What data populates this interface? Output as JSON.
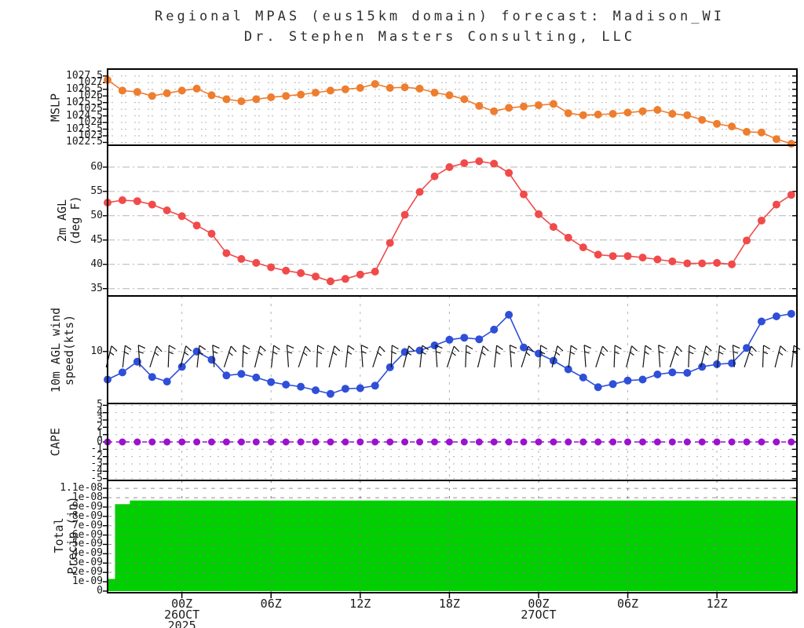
{
  "title": {
    "line1": "Regional MPAS (eus15km domain) forecast: Madison_WI",
    "line2": "Dr. Stephen Masters Consulting, LLC"
  },
  "colors": {
    "mslp": "#ee7d2e",
    "temperature": "#f14a4a",
    "wind": "#2f4fd8",
    "cape": "#9b12cc",
    "precip": "#00d000",
    "grid": "#b4b4b4",
    "frame": "#000000",
    "text": "#1a1a1a",
    "title_text": "#2e2e2e"
  },
  "chart_data": {
    "type": "line",
    "subtype": "meteogram-stacked-panels",
    "x": {
      "n_points": 47,
      "hours_between_points": 1,
      "major_tick_indices": [
        5,
        11,
        17,
        23,
        29,
        35,
        41
      ],
      "major_tick_labels": [
        "00Z",
        "06Z",
        "12Z",
        "18Z",
        "00Z",
        "06Z",
        "12Z"
      ],
      "date_annotations": [
        {
          "index": 5,
          "lines": [
            "26OCT",
            "2025"
          ]
        },
        {
          "index": 29,
          "lines": [
            "27OCT"
          ]
        }
      ]
    },
    "panels": [
      {
        "id": "mslp",
        "ylabel_lines": [
          "MSLP"
        ],
        "type": "line",
        "color": "#ee7d2e",
        "ylim": [
          1022.29,
          1028.02
        ],
        "grid_dash": "2 3 2 10",
        "grid_h": true,
        "grid_v_major": false,
        "yticks": [
          {
            "v": 1027.5,
            "label": "1027.5"
          },
          {
            "v": 1027,
            "label": "1027"
          },
          {
            "v": 1026.5,
            "label": "1026.5"
          },
          {
            "v": 1026,
            "label": "1026"
          },
          {
            "v": 1025.5,
            "label": "1025.5"
          },
          {
            "v": 1025,
            "label": "1025"
          },
          {
            "v": 1024.5,
            "label": "1024.5"
          },
          {
            "v": 1024,
            "label": "1024"
          },
          {
            "v": 1023.5,
            "label": "1023.5"
          },
          {
            "v": 1023,
            "label": "1023"
          },
          {
            "v": 1022.5,
            "label": "1022.5"
          }
        ],
        "values": [
          1027.2,
          1026.4,
          1026.3,
          1026.0,
          1026.2,
          1026.4,
          1026.55,
          1026.05,
          1025.75,
          1025.6,
          1025.75,
          1025.9,
          1026.0,
          1026.1,
          1026.25,
          1026.4,
          1026.5,
          1026.6,
          1026.9,
          1026.6,
          1026.65,
          1026.55,
          1026.25,
          1026.05,
          1025.75,
          1025.25,
          1024.85,
          1025.1,
          1025.2,
          1025.3,
          1025.4,
          1024.7,
          1024.55,
          1024.6,
          1024.65,
          1024.75,
          1024.85,
          1024.95,
          1024.65,
          1024.55,
          1024.2,
          1023.9,
          1023.7,
          1023.3,
          1023.25,
          1022.75,
          1022.4
        ]
      },
      {
        "id": "temperature",
        "ylabel_lines": [
          "2m AGL",
          "(deg F)"
        ],
        "type": "line",
        "color": "#f14a4a",
        "ylim": [
          33.5,
          64.5
        ],
        "grid_dash": "9 4 2 4",
        "grid_h": true,
        "grid_v_major": false,
        "yticks": [
          {
            "v": 60,
            "label": "60"
          },
          {
            "v": 55,
            "label": "55"
          },
          {
            "v": 50,
            "label": "50"
          },
          {
            "v": 45,
            "label": "45"
          },
          {
            "v": 40,
            "label": "40"
          },
          {
            "v": 35,
            "label": "35"
          }
        ],
        "values": [
          52.7,
          53.2,
          53.0,
          52.3,
          51.1,
          49.9,
          48.0,
          46.3,
          42.3,
          41.1,
          40.3,
          39.4,
          38.7,
          38.2,
          37.5,
          36.5,
          37.0,
          37.9,
          38.5,
          44.4,
          50.2,
          54.9,
          58.1,
          60.0,
          60.8,
          61.2,
          60.7,
          58.8,
          54.4,
          50.3,
          47.7,
          45.5,
          43.5,
          42.0,
          41.7,
          41.7,
          41.4,
          41.0,
          40.6,
          40.2,
          40.2,
          40.3,
          40.0,
          44.9,
          49.0,
          52.3,
          54.3
        ]
      },
      {
        "id": "wind",
        "ylabel_lines": [
          "10m AGL wind",
          "speed(kts)"
        ],
        "type": "line",
        "color": "#2f4fd8",
        "ylim": [
          -0.2,
          20.9
        ],
        "grid_dash": "3 6",
        "grid_h": true,
        "grid_v_major": true,
        "has_barbs": true,
        "yticks": [
          {
            "v": 10,
            "label": "10"
          }
        ],
        "values": [
          4.5,
          5.9,
          8.0,
          5.0,
          4.1,
          7.0,
          10.0,
          8.4,
          5.3,
          5.6,
          4.9,
          4.0,
          3.5,
          3.1,
          2.4,
          1.7,
          2.7,
          2.8,
          3.3,
          6.9,
          9.9,
          10.2,
          11.2,
          12.3,
          12.7,
          12.4,
          14.3,
          17.2,
          10.8,
          9.6,
          8.2,
          6.5,
          4.9,
          3.0,
          3.6,
          4.3,
          4.5,
          5.5,
          5.9,
          5.8,
          7.0,
          7.5,
          7.7,
          10.7,
          15.9,
          16.9,
          17.4
        ]
      },
      {
        "id": "cape",
        "ylabel_lines": [
          "CAPE"
        ],
        "type": "line",
        "color": "#9b12cc",
        "line_dash": "6 5",
        "dot_r": 4.5,
        "ylim": [
          -5.25,
          5.25
        ],
        "grid_dash": "2 8",
        "grid_h": true,
        "grid_v_major": true,
        "yticks": [
          {
            "v": 5,
            "label": "5"
          },
          {
            "v": 4,
            "label": "4"
          },
          {
            "v": 3,
            "label": "3"
          },
          {
            "v": 2,
            "label": "2"
          },
          {
            "v": 1,
            "label": "1"
          },
          {
            "v": 0,
            "label": "0"
          },
          {
            "v": -1,
            "label": "-1"
          },
          {
            "v": -2,
            "label": "-2"
          },
          {
            "v": -3,
            "label": "-3"
          },
          {
            "v": -4,
            "label": "-4"
          },
          {
            "v": -5,
            "label": "-5"
          }
        ],
        "values": [
          0,
          0,
          0,
          0,
          0,
          0,
          0,
          0,
          0,
          0,
          0,
          0,
          0,
          0,
          0,
          0,
          0,
          0,
          0,
          0,
          0,
          0,
          0,
          0,
          0,
          0,
          0,
          0,
          0,
          0,
          0,
          0,
          0,
          0,
          0,
          0,
          0,
          0,
          0,
          0,
          0,
          0,
          0,
          0,
          0,
          0,
          0
        ]
      },
      {
        "id": "precip",
        "ylabel_lines": [
          "Total",
          "Precip (in)"
        ],
        "type": "bar",
        "color": "#00d000",
        "ylim": [
          -1.7e-10,
          1.185e-08
        ],
        "grid_dash": "5 6",
        "grid_h": true,
        "grid_v_major": true,
        "yticks": [
          {
            "v": 1.1e-08,
            "label": "1.1e-08"
          },
          {
            "v": 1e-08,
            "label": "1e-08"
          },
          {
            "v": 9e-09,
            "label": "9e-09"
          },
          {
            "v": 8e-09,
            "label": "8e-09"
          },
          {
            "v": 7e-09,
            "label": "7e-09"
          },
          {
            "v": 6e-09,
            "label": "6e-09"
          },
          {
            "v": 5e-09,
            "label": "5e-09"
          },
          {
            "v": 4e-09,
            "label": "4e-09"
          },
          {
            "v": 3e-09,
            "label": "3e-09"
          },
          {
            "v": 2e-09,
            "label": "2e-09"
          },
          {
            "v": 1e-09,
            "label": "1e-09"
          },
          {
            "v": 0,
            "label": "0"
          }
        ],
        "values": [
          1.3e-09,
          9.3e-09,
          9.7e-09,
          9.7e-09,
          9.7e-09,
          9.7e-09,
          9.7e-09,
          9.7e-09,
          9.7e-09,
          9.7e-09,
          9.7e-09,
          9.7e-09,
          9.7e-09,
          9.7e-09,
          9.7e-09,
          9.7e-09,
          9.7e-09,
          9.7e-09,
          9.7e-09,
          9.7e-09,
          9.7e-09,
          9.7e-09,
          9.7e-09,
          9.7e-09,
          9.7e-09,
          9.7e-09,
          9.7e-09,
          9.7e-09,
          9.7e-09,
          9.7e-09,
          9.7e-09,
          9.7e-09,
          9.7e-09,
          9.7e-09,
          9.7e-09,
          9.7e-09,
          9.7e-09,
          9.7e-09,
          9.7e-09,
          9.7e-09,
          9.7e-09,
          9.7e-09,
          9.7e-09,
          9.7e-09,
          9.7e-09,
          9.7e-09,
          9.7e-09
        ]
      }
    ]
  }
}
